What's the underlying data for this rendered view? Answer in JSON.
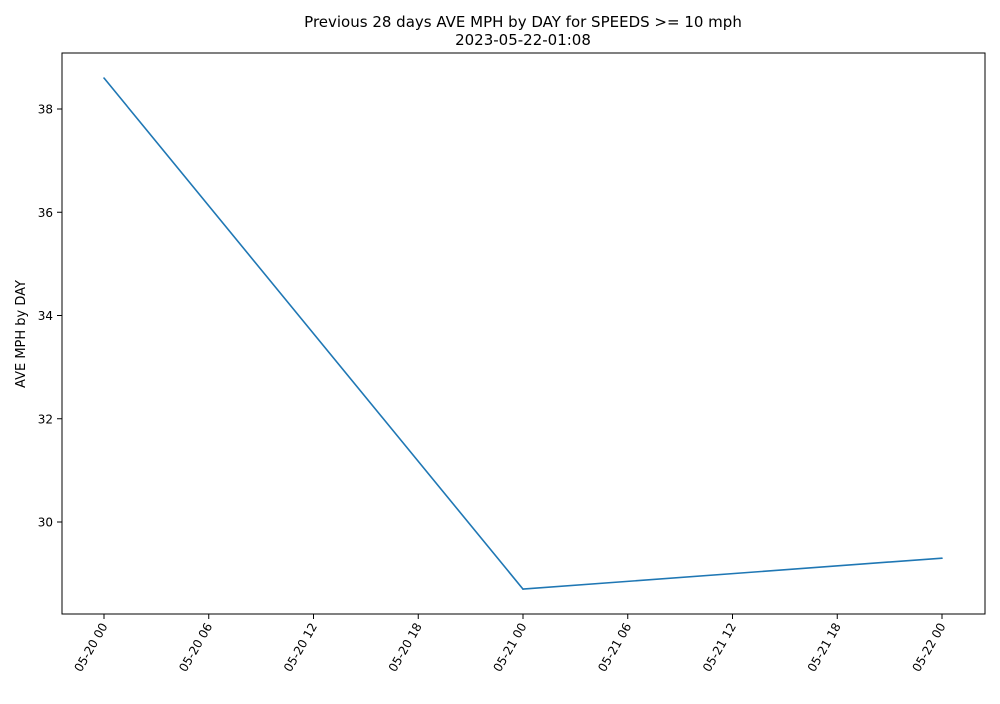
{
  "chart_data": {
    "type": "line",
    "title": "Previous 28 days AVE MPH by DAY for SPEEDS >= 10 mph",
    "subtitle": "2023-05-22-01:08",
    "xlabel": "",
    "ylabel": "AVE MPH by DAY",
    "x_ticks": [
      "05-20 00",
      "05-20 06",
      "05-20 12",
      "05-20 18",
      "05-21 00",
      "05-21 06",
      "05-21 12",
      "05-21 18",
      "05-22 00"
    ],
    "y_ticks": [
      "30",
      "32",
      "34",
      "36",
      "38"
    ],
    "grid": false,
    "series": [
      {
        "color": "#1f77b4",
        "points": [
          {
            "x": "2023-05-20 00:00",
            "y": 38.6
          },
          {
            "x": "2023-05-21 00:00",
            "y": 28.7
          },
          {
            "x": "2023-05-22 00:00",
            "y": 29.3
          }
        ]
      }
    ]
  }
}
